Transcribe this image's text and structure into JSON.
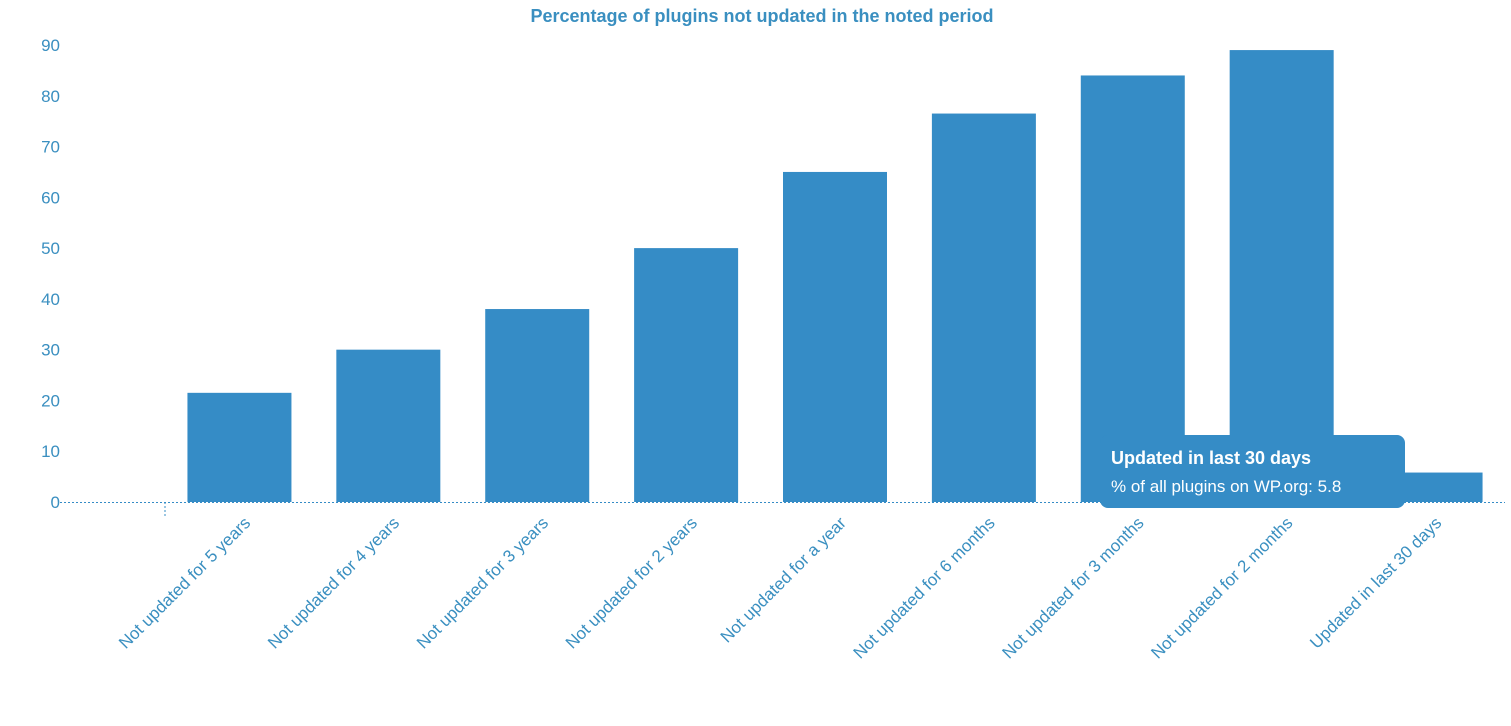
{
  "colors": {
    "bar": "#358cc6",
    "text": "#3a8fc0",
    "tooltip_bg": "#358cc6",
    "tooltip_text": "#ffffff"
  },
  "chart_data": {
    "type": "bar",
    "title": "Percentage of plugins not updated in the noted period",
    "xlabel": "",
    "ylabel": "",
    "ylim": [
      0,
      90
    ],
    "yticks": [
      0,
      10,
      20,
      30,
      40,
      50,
      60,
      70,
      80,
      90
    ],
    "grid": false,
    "legend": "none",
    "categories": [
      "Not updated for 5 years",
      "Not updated for 4 years",
      "Not updated for 3 years",
      "Not updated for 2 years",
      "Not updated for a year",
      "Not updated for 6 months",
      "Not updated for 3 months",
      "Not updated for 2 months",
      "Updated in last 30 days"
    ],
    "values": [
      21.5,
      30,
      38,
      50,
      65,
      76.5,
      84,
      89,
      5.8
    ]
  },
  "tooltip": {
    "title": "Updated in last 30 days",
    "label": "% of all plugins on WP.org:",
    "value": "5.8"
  }
}
